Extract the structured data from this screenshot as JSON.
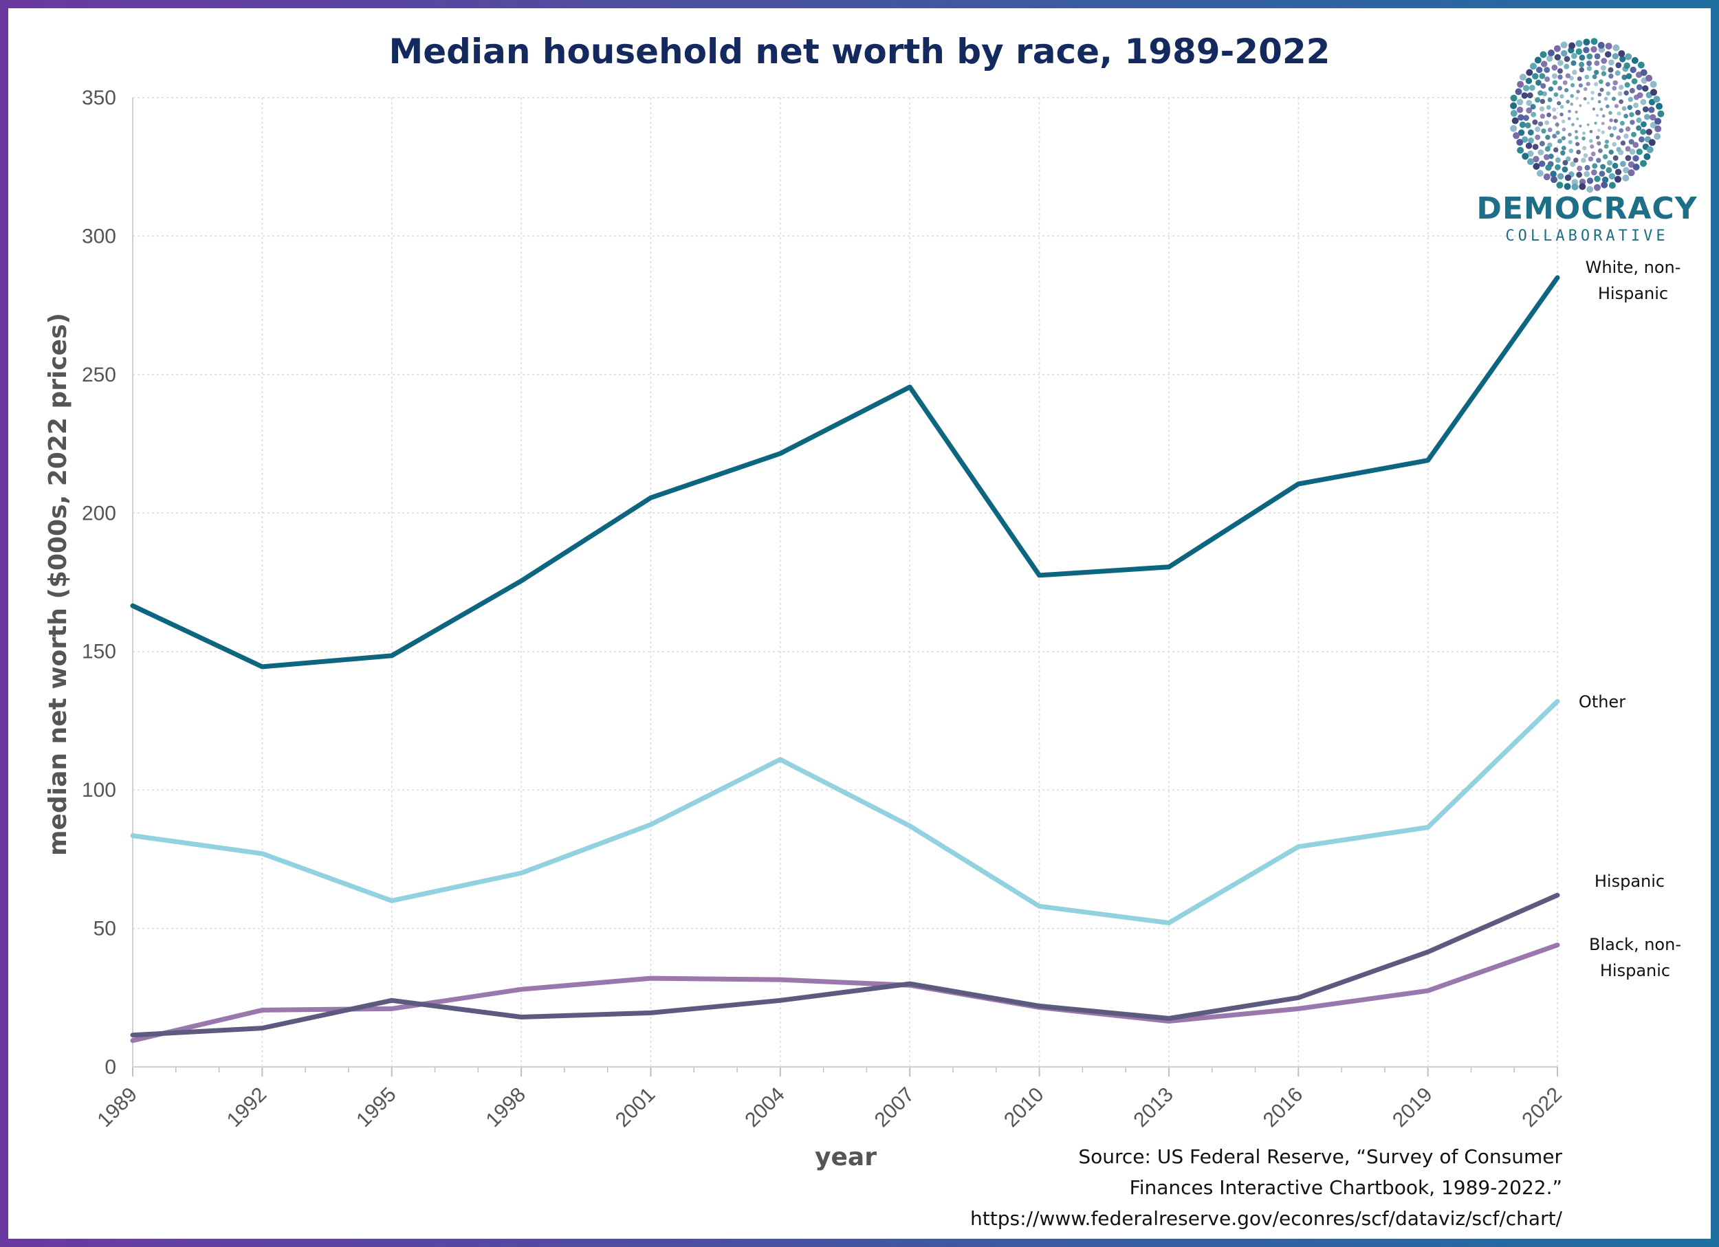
{
  "colors": {
    "title": "#14295e",
    "frame_start": "#6a3aa0",
    "frame_end": "#1f6fa0",
    "white_non_hispanic": "#0d6680",
    "other": "#92d1e0",
    "hispanic": "#5d5a80",
    "black_non_hispanic": "#9a78ad",
    "grid": "#d9d9d9"
  },
  "logo": {
    "line1": "DEMOCRACY",
    "line2": "COLLABORATIVE"
  },
  "source": {
    "line1": "Source: US Federal Reserve, “Survey of Consumer",
    "line2": "Finances Interactive Chartbook, 1989-2022.”",
    "line3": "https://www.federalreserve.gov/econres/scf/dataviz/scf/chart/"
  },
  "chart_data": {
    "type": "line",
    "title": "Median household net worth by race, 1989-2022",
    "xlabel": "year",
    "ylabel": "median net worth ($000s, 2022 prices)",
    "x": [
      "1989",
      "1992",
      "1995",
      "1998",
      "2001",
      "2004",
      "2007",
      "2010",
      "2013",
      "2016",
      "2019",
      "2022"
    ],
    "ylim": [
      0,
      350
    ],
    "yticks": [
      "0",
      "50",
      "100",
      "150",
      "200",
      "250",
      "300",
      "350"
    ],
    "grid": true,
    "legend": "direct labels at line ends (right)",
    "series": [
      {
        "key": "white_non_hispanic",
        "name": "White, non-Hispanic",
        "label_lines": [
          "White, non-",
          "Hispanic"
        ],
        "values": [
          166.5,
          144.5,
          148.5,
          175.5,
          205.5,
          221.5,
          245.5,
          177.5,
          180.5,
          210.5,
          219,
          285
        ]
      },
      {
        "key": "other",
        "name": "Other",
        "label_lines": [
          "Other"
        ],
        "values": [
          83.5,
          77,
          60,
          70,
          87.5,
          111,
          87,
          58,
          52,
          79.5,
          86.5,
          132
        ]
      },
      {
        "key": "hispanic",
        "name": "Hispanic",
        "label_lines": [
          "Hispanic"
        ],
        "values": [
          11.5,
          14,
          24,
          18,
          19.5,
          24,
          30,
          22,
          17.5,
          25,
          41.5,
          62
        ]
      },
      {
        "key": "black_non_hispanic",
        "name": "Black, non-Hispanic",
        "label_lines": [
          "Black, non-",
          "Hispanic"
        ],
        "values": [
          9.5,
          20.5,
          21,
          28,
          32,
          31.5,
          29.5,
          21.5,
          16.5,
          21,
          27.5,
          44
        ]
      }
    ]
  }
}
